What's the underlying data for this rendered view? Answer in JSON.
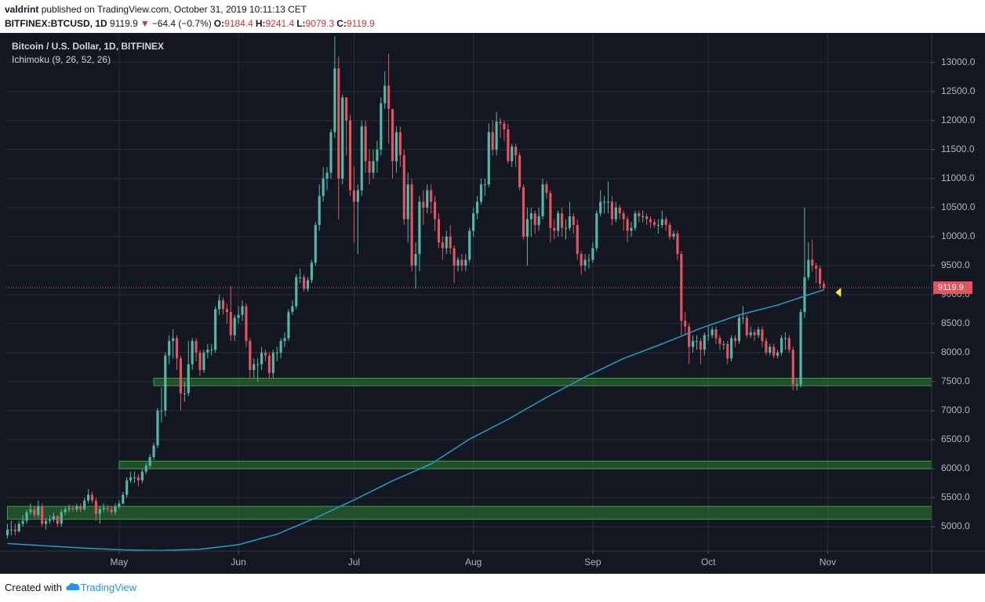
{
  "header": {
    "author": "valdrint",
    "published": "published on TradingView.com, October 31, 2019 10:11:13 CET",
    "symbol": "BITFINEX:BTCUSD, 1D",
    "last": "9119.9",
    "arrow": "▼",
    "change": "−64.4 (−0.7%)",
    "o_label": "O:",
    "o": "9184.4",
    "h_label": "H:",
    "h": "9241.4",
    "l_label": "L:",
    "l": "9079.3",
    "c_label": "C:",
    "c": "9119.9"
  },
  "chart_data": {
    "type": "candlestick",
    "title": "Bitcoin / U.S. Dollar, 1D, BITFINEX",
    "subtitle": "Ichimoku (9, 26, 52, 26)",
    "up_color": "#53b9a6",
    "down_color": "#e5535f",
    "grid": true,
    "xlim": [
      -0.3,
      240
    ],
    "xticks": [
      {
        "value": 29,
        "label": "May"
      },
      {
        "value": 60,
        "label": "Jun"
      },
      {
        "value": 90,
        "label": "Jul"
      },
      {
        "value": 121,
        "label": "Aug"
      },
      {
        "value": 152,
        "label": "Sep"
      },
      {
        "value": 182,
        "label": "Oct"
      },
      {
        "value": 213,
        "label": "Nov"
      }
    ],
    "ylim": [
      4580,
      13470
    ],
    "yticks": [
      {
        "value": 5000,
        "label": "5000.0"
      },
      {
        "value": 5500,
        "label": "5500.0"
      },
      {
        "value": 6000,
        "label": "6000.0"
      },
      {
        "value": 6500,
        "label": "6500.0"
      },
      {
        "value": 7000,
        "label": "7000.0"
      },
      {
        "value": 7500,
        "label": "7500.0"
      },
      {
        "value": 8000,
        "label": "8000.0"
      },
      {
        "value": 8500,
        "label": "8500.0"
      },
      {
        "value": 9000,
        "label": "9000.0"
      },
      {
        "value": 9500,
        "label": "9500.0"
      },
      {
        "value": 10000,
        "label": "10000.0"
      },
      {
        "value": 10500,
        "label": "10500.0"
      },
      {
        "value": 11000,
        "label": "11000.0"
      },
      {
        "value": 11500,
        "label": "11500.0"
      },
      {
        "value": 12000,
        "label": "12000.0"
      },
      {
        "value": 12500,
        "label": "12500.0"
      },
      {
        "value": 13000,
        "label": "13000.0"
      }
    ],
    "open": [
      4850,
      4950,
      4950,
      4920,
      5050,
      5100,
      5250,
      5300,
      5200,
      5350,
      5050,
      5100,
      5120,
      5180,
      5050,
      5250,
      5300,
      5320,
      5300,
      5350,
      5300,
      5450,
      5550,
      5450,
      5220,
      5300,
      5320,
      5300,
      5250,
      5350,
      5400,
      5550,
      5800,
      5850,
      5850,
      5800,
      5950,
      6050,
      6200,
      6400,
      7000,
      7000,
      7950,
      8200,
      8250,
      7900,
      7300,
      7300,
      7800,
      8200,
      8000,
      7700,
      8000,
      8050,
      8050,
      8750,
      8900,
      8750,
      8700,
      8300,
      8600,
      8650,
      8800,
      8200,
      7700,
      7800,
      7800,
      8000,
      7950,
      7650,
      8000,
      8000,
      8200,
      8250,
      8700,
      8800,
      9300,
      9300,
      9100,
      9250,
      9550,
      10200,
      10700,
      11000,
      11100,
      11800,
      12900,
      11000,
      12400,
      12000,
      10800,
      10600,
      10800,
      11900,
      11300,
      11100,
      11300,
      11500,
      12300,
      12600,
      12200,
      11300,
      11800,
      11400,
      10300,
      10900,
      9500,
      9700,
      10600,
      10500,
      10800,
      10600,
      10300,
      9900,
      9800,
      10000,
      9800,
      9500,
      9600,
      9500,
      9600,
      10100,
      10400,
      10600,
      10900,
      10900,
      11800,
      11500,
      11980,
      11950,
      11850,
      11300,
      11550,
      11400,
      10850,
      10000,
      10300,
      10400,
      10200,
      10350,
      10900,
      10750,
      10150,
      10100,
      10400,
      10150,
      10150,
      10350,
      10200,
      9700,
      9500,
      9600,
      9600,
      9800,
      10400,
      10600,
      10600,
      10600,
      10300,
      10500,
      10400,
      10300,
      10100,
      10150,
      10400,
      10350,
      10350,
      10300,
      10250,
      10200,
      10200,
      10300,
      10200,
      10000,
      10050,
      9700,
      8550,
      8450,
      8100,
      8200,
      8200,
      8050,
      8300,
      8300,
      8400,
      8250,
      8150,
      8150,
      7900,
      8250,
      8200,
      8600,
      8600,
      8300,
      8350,
      8300,
      8400,
      8200,
      8000,
      8100,
      7950,
      8000,
      8250,
      8250,
      8050,
      7450,
      7450,
      8700,
      9300,
      9600,
      9500,
      9450,
      9184.4
    ],
    "high": [
      5050,
      5100,
      5050,
      5100,
      5200,
      5300,
      5400,
      5350,
      5450,
      5400,
      5150,
      5200,
      5250,
      5200,
      5300,
      5350,
      5380,
      5370,
      5400,
      5400,
      5500,
      5650,
      5600,
      5500,
      5350,
      5400,
      5380,
      5350,
      5400,
      5450,
      5600,
      5850,
      5950,
      5950,
      5900,
      6000,
      6100,
      6250,
      6450,
      7050,
      7400,
      8000,
      8300,
      8400,
      8300,
      7950,
      7500,
      8200,
      8250,
      8250,
      8050,
      8050,
      8150,
      8150,
      8800,
      9000,
      8950,
      8850,
      9150,
      8650,
      8800,
      8900,
      8850,
      8250,
      7900,
      7900,
      8100,
      8050,
      8000,
      8050,
      8100,
      8250,
      8350,
      8750,
      8900,
      9350,
      9450,
      9350,
      9300,
      9600,
      10250,
      10900,
      11200,
      11200,
      11850,
      13450,
      13100,
      12450,
      12400,
      12100,
      11200,
      10900,
      12000,
      12000,
      11500,
      11500,
      11650,
      12400,
      12850,
      13150,
      12200,
      11900,
      11900,
      11500,
      11100,
      11000,
      9900,
      10700,
      10800,
      10900,
      10900,
      10700,
      10400,
      10000,
      10100,
      10200,
      9850,
      9650,
      9700,
      9700,
      10150,
      10500,
      10700,
      11000,
      11000,
      11950,
      12000,
      12150,
      12050,
      12000,
      11950,
      11600,
      11600,
      11450,
      10900,
      10500,
      10500,
      10450,
      10500,
      11000,
      10950,
      10800,
      10300,
      10450,
      10500,
      10300,
      10600,
      10400,
      10300,
      9750,
      9700,
      9700,
      9900,
      10450,
      10800,
      10700,
      10950,
      10700,
      10600,
      10550,
      10450,
      10350,
      10250,
      10450,
      10450,
      10450,
      10400,
      10350,
      10300,
      10300,
      10450,
      10350,
      10250,
      10100,
      10100,
      9750,
      8700,
      8500,
      8300,
      8300,
      8250,
      8350,
      8450,
      8450,
      8450,
      8300,
      8200,
      8200,
      8300,
      8300,
      8650,
      8800,
      8650,
      8450,
      8400,
      8450,
      8450,
      8250,
      8150,
      8150,
      8050,
      8300,
      8350,
      8300,
      8100,
      7550,
      8750,
      10500,
      9900,
      9950,
      9550,
      9500,
      9241.4
    ],
    "low": [
      4800,
      4850,
      4850,
      4900,
      5000,
      5050,
      5200,
      5150,
      5150,
      5000,
      4950,
      5050,
      5080,
      5000,
      5000,
      5200,
      5250,
      5250,
      5250,
      5250,
      5280,
      5400,
      5400,
      5100,
      5050,
      5250,
      5250,
      5200,
      5200,
      5300,
      5380,
      5500,
      5750,
      5750,
      5700,
      5750,
      5900,
      6000,
      6150,
      6350,
      6800,
      6900,
      7800,
      7900,
      7700,
      7000,
      7150,
      7250,
      7700,
      7850,
      7600,
      7650,
      7900,
      7950,
      8000,
      8650,
      8650,
      8500,
      8200,
      8200,
      8500,
      8550,
      8100,
      7550,
      7550,
      7500,
      7700,
      7850,
      7550,
      7550,
      7850,
      7900,
      8100,
      8200,
      8650,
      8750,
      9200,
      9050,
      9050,
      9200,
      9500,
      10100,
      10600,
      10800,
      11000,
      11700,
      10300,
      10900,
      11400,
      10700,
      9900,
      9700,
      10700,
      11100,
      10900,
      11000,
      11100,
      11400,
      12200,
      11600,
      11000,
      11100,
      11200,
      10200,
      9900,
      9400,
      9100,
      9400,
      10200,
      10400,
      10400,
      10100,
      9800,
      9600,
      9700,
      9700,
      9200,
      9400,
      9400,
      9400,
      9550,
      10000,
      10300,
      10550,
      10700,
      10850,
      11400,
      11400,
      11700,
      11650,
      11250,
      11200,
      11200,
      10800,
      9950,
      9500,
      10000,
      10050,
      10100,
      10300,
      10650,
      9900,
      9950,
      10000,
      10000,
      9950,
      10100,
      10050,
      9600,
      9350,
      9400,
      9450,
      9550,
      9750,
      10350,
      10400,
      10400,
      10200,
      10250,
      10300,
      10100,
      9900,
      10000,
      10100,
      10250,
      10250,
      10200,
      10150,
      10150,
      10050,
      10150,
      10100,
      9950,
      9950,
      9600,
      8300,
      8300,
      7800,
      8000,
      8050,
      7800,
      7950,
      8200,
      8250,
      8150,
      8050,
      8050,
      7800,
      7850,
      8100,
      8150,
      8500,
      8250,
      8250,
      8200,
      8250,
      8100,
      7950,
      7950,
      7900,
      7900,
      7950,
      8050,
      8000,
      7350,
      7350,
      7400,
      8600,
      9250,
      9400,
      9200,
      9100,
      9079.3
    ],
    "close": [
      4950,
      4950,
      4920,
      5050,
      5100,
      5250,
      5300,
      5200,
      5350,
      5050,
      5100,
      5120,
      5180,
      5050,
      5250,
      5300,
      5320,
      5300,
      5350,
      5300,
      5450,
      5550,
      5450,
      5220,
      5300,
      5320,
      5300,
      5250,
      5350,
      5400,
      5550,
      5800,
      5850,
      5850,
      5800,
      5950,
      6050,
      6200,
      6400,
      7000,
      7000,
      7950,
      8200,
      8250,
      7900,
      7300,
      7300,
      7800,
      8200,
      8000,
      7700,
      8000,
      8050,
      8050,
      8750,
      8900,
      8750,
      8700,
      8300,
      8600,
      8650,
      8800,
      8200,
      7700,
      7800,
      7800,
      8000,
      7950,
      7650,
      8000,
      8000,
      8200,
      8250,
      8700,
      8800,
      9300,
      9300,
      9100,
      9250,
      9550,
      10200,
      10700,
      11000,
      11100,
      11800,
      12900,
      11000,
      12400,
      12000,
      10800,
      10600,
      10800,
      11900,
      11300,
      11100,
      11300,
      11500,
      12300,
      12600,
      12200,
      11300,
      11800,
      11400,
      10300,
      10900,
      9500,
      9700,
      10600,
      10500,
      10800,
      10600,
      10300,
      9900,
      9800,
      10000,
      9800,
      9500,
      9600,
      9500,
      9600,
      10100,
      10400,
      10600,
      10900,
      10900,
      11800,
      11500,
      11980,
      11950,
      11850,
      11300,
      11550,
      11400,
      10850,
      10000,
      10300,
      10400,
      10200,
      10350,
      10900,
      10750,
      10150,
      10100,
      10400,
      10150,
      10150,
      10350,
      10200,
      9700,
      9500,
      9600,
      9600,
      9800,
      10400,
      10600,
      10600,
      10600,
      10300,
      10500,
      10400,
      10300,
      10100,
      10150,
      10400,
      10350,
      10350,
      10300,
      10250,
      10200,
      10200,
      10300,
      10200,
      10000,
      10050,
      9700,
      8550,
      8450,
      8100,
      8200,
      8200,
      8050,
      8300,
      8300,
      8400,
      8250,
      8150,
      8150,
      7900,
      8250,
      8200,
      8600,
      8600,
      8300,
      8350,
      8300,
      8400,
      8200,
      8000,
      8100,
      7950,
      8000,
      8250,
      8250,
      8050,
      7450,
      7450,
      8700,
      9300,
      9600,
      9500,
      9450,
      9184.4,
      9119.9
    ],
    "line": {
      "color": "#2a9bc4",
      "x": [
        0,
        10,
        20,
        30,
        40,
        50,
        60,
        70,
        80,
        90,
        100,
        110,
        120,
        130,
        140,
        150,
        160,
        170,
        180,
        190,
        200,
        210,
        212
      ],
      "values": [
        4710,
        4670,
        4630,
        4600,
        4590,
        4610,
        4690,
        4870,
        5150,
        5460,
        5790,
        6080,
        6510,
        6850,
        7230,
        7580,
        7900,
        8150,
        8420,
        8650,
        8820,
        9040,
        9080
      ]
    },
    "zones": [
      {
        "start": 38,
        "low": 7430,
        "high": 7560,
        "color": "#2e7d32"
      },
      {
        "start": 29,
        "low": 6000,
        "high": 6130,
        "color": "#2e7d32"
      },
      {
        "start": 0,
        "low": 5130,
        "high": 5350,
        "color": "#2e7d32"
      }
    ],
    "last": 9119.9,
    "last_color": "#e5535f"
  },
  "footer": {
    "text": "Created with",
    "brand": "TradingView"
  }
}
